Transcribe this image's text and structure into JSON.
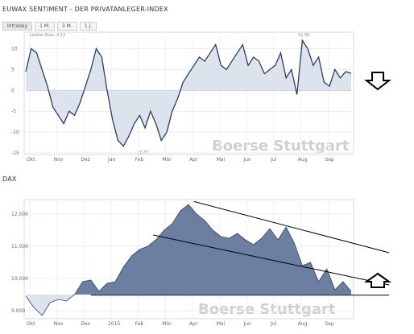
{
  "chart1": {
    "title": "EUWAX SENTIMENT - DER PRIVATANLEGER-INDEX",
    "tabs": [
      "Intraday",
      "1 M.",
      "3 M.",
      "1 J."
    ],
    "last_value": "Letzter Kurs: 4,12",
    "max_note": "12,00",
    "min_note": "-13,40",
    "watermark": "Boerse Stuttgart"
  },
  "chart2": {
    "title": "DAX",
    "watermark": "Boerse Stuttgart"
  },
  "chart_data": [
    {
      "type": "area",
      "title": "EUWAX SENTIMENT - DER PRIVATANLEGER-INDEX",
      "xlabel": "",
      "ylabel": "",
      "ylim": [
        -15,
        13
      ],
      "yticks": [
        "10",
        "5",
        "0",
        "-5",
        "-10",
        "-15"
      ],
      "xticks": [
        "Okt",
        "Nov",
        "Dez",
        "Jan",
        "Feb",
        "Mär",
        "Apr",
        "Mai",
        "Jun",
        "Jul",
        "Aug",
        "Sep"
      ],
      "grid": true,
      "x_month_index": [
        0,
        0.2,
        0.4,
        0.6,
        0.8,
        1.0,
        1.2,
        1.4,
        1.6,
        1.8,
        2.0,
        2.2,
        2.4,
        2.6,
        2.8,
        3.0,
        3.2,
        3.4,
        3.6,
        3.8,
        4.0,
        4.2,
        4.4,
        4.6,
        4.8,
        5.0,
        5.2,
        5.4,
        5.6,
        5.8,
        6.0,
        6.2,
        6.4,
        6.6,
        6.8,
        7.0,
        7.2,
        7.4,
        7.6,
        7.8,
        8.0,
        8.2,
        8.4,
        8.6,
        8.8,
        9.0,
        9.2,
        9.4,
        9.6,
        9.8,
        10.0,
        10.2,
        10.4,
        10.6,
        10.8,
        11.0,
        11.2,
        11.4,
        11.6,
        11.8,
        12.0
      ],
      "values": [
        4.5,
        10.0,
        9.0,
        5.0,
        1.0,
        -4.0,
        -6.0,
        -8.0,
        -5.0,
        -6.0,
        -3.0,
        1.0,
        5.0,
        10.0,
        8.0,
        0.0,
        -7.0,
        -12.0,
        -13.4,
        -11.0,
        -8.0,
        -6.0,
        -9.0,
        -5.0,
        -8.0,
        -12.0,
        -10.0,
        -5.0,
        -2.0,
        2.0,
        4.0,
        6.0,
        8.0,
        7.0,
        9.0,
        11.0,
        6.0,
        5.0,
        7.0,
        9.0,
        11.0,
        6.0,
        8.0,
        7.0,
        4.0,
        5.0,
        6.0,
        9.0,
        3.0,
        5.0,
        -1.0,
        12.0,
        10.0,
        6.0,
        8.0,
        2.0,
        1.0,
        5.0,
        3.0,
        4.5,
        4.1
      ]
    },
    {
      "type": "area",
      "title": "DAX",
      "xlabel": "",
      "ylabel": "",
      "ylim": [
        8800,
        12400
      ],
      "yticks": [
        "12.000",
        "11.000",
        "10.000",
        "9.000"
      ],
      "xticks": [
        "Okt",
        "Nov",
        "Dez",
        "2015",
        "Feb",
        "Mär",
        "Apr",
        "Mai",
        "Jun",
        "Jul",
        "Aug",
        "Sep"
      ],
      "baseline": 9500,
      "grid": true,
      "x_month_index": [
        0,
        0.3,
        0.6,
        0.9,
        1.2,
        1.5,
        1.8,
        2.1,
        2.4,
        2.7,
        3.0,
        3.3,
        3.6,
        3.9,
        4.2,
        4.5,
        4.8,
        5.1,
        5.4,
        5.7,
        6.0,
        6.3,
        6.6,
        6.9,
        7.2,
        7.5,
        7.8,
        8.1,
        8.4,
        8.7,
        9.0,
        9.3,
        9.6,
        9.9,
        10.2,
        10.5,
        10.8,
        11.1,
        11.4,
        11.7,
        12.0
      ],
      "values": [
        9450,
        9100,
        8850,
        9250,
        9350,
        9300,
        9500,
        9900,
        9950,
        9600,
        9850,
        9900,
        10350,
        10700,
        10900,
        11000,
        11200,
        11500,
        11700,
        12100,
        12300,
        12000,
        11800,
        11500,
        11300,
        11250,
        11400,
        11200,
        11050,
        11250,
        11550,
        11200,
        11600,
        11100,
        10400,
        10500,
        9900,
        10300,
        9650,
        9900,
        9600
      ],
      "trendlines": [
        {
          "from": {
            "x": 6.2,
            "y": 12390
          },
          "to": {
            "x": 13.4,
            "y": 10800
          }
        },
        {
          "from": {
            "x": 4.7,
            "y": 11350
          },
          "to": {
            "x": 13.4,
            "y": 9800
          }
        },
        {
          "from": {
            "x": 2.4,
            "y": 9480
          },
          "to": {
            "x": 13.4,
            "y": 9480
          }
        }
      ]
    }
  ],
  "arrows": [
    {
      "name": "down-arrow",
      "direction": "down"
    },
    {
      "name": "up-arrow",
      "direction": "up"
    }
  ]
}
